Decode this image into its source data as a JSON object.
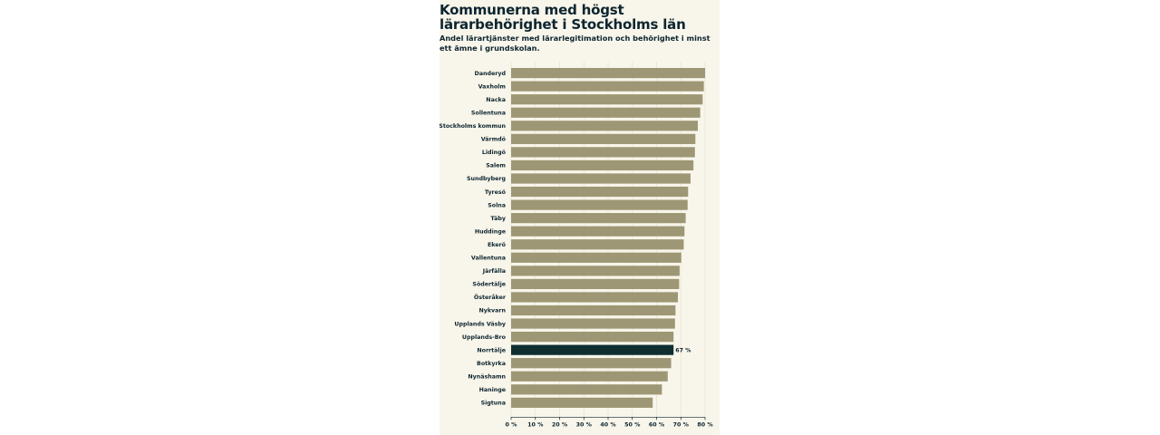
{
  "title": "Kommunerna med högst lärarbehörighet i Stockholms län",
  "subtitle": "Andel lärartjänster med lärarlegitimation och behörighet i minst ett ämne i grundskolan.",
  "chart_data": {
    "type": "bar",
    "orientation": "horizontal",
    "title": "Kommunerna med högst lärarbehörighet i Stockholms län",
    "subtitle": "Andel lärartjänster med lärarlegitimation och behörighet i minst ett ämne i grundskolan.",
    "xlabel": "",
    "ylabel": "",
    "xlim": [
      0,
      80
    ],
    "grid": true,
    "categories": [
      "Danderyd",
      "Vaxholm",
      "Nacka",
      "Sollentuna",
      "Stockholms kommun",
      "Värmdö",
      "Lidingö",
      "Salem",
      "Sundbyberg",
      "Tyresö",
      "Solna",
      "Täby",
      "Huddinge",
      "Ekerö",
      "Vallentuna",
      "Järfälla",
      "Södertälje",
      "Österåker",
      "Nykvarn",
      "Upplands Väsby",
      "Upplands-Bro",
      "Norrtälje",
      "Botkyrka",
      "Nynäshamn",
      "Haninge",
      "Sigtuna"
    ],
    "values": [
      80,
      79.5,
      79,
      78,
      77,
      76,
      75.8,
      75.2,
      74,
      73,
      72.8,
      72,
      71.5,
      71.2,
      70.2,
      69.5,
      69.3,
      68.8,
      67.8,
      67.6,
      67,
      67,
      66,
      64.6,
      62.2,
      58.4
    ],
    "tick_labels": [
      "0 %",
      "10 %",
      "20 %",
      "30 %",
      "40 %",
      "50 %",
      "60 %",
      "70 %",
      "80 %"
    ],
    "highlight": {
      "category": "Norrtälje",
      "label": "67 %"
    },
    "colors": {
      "bar": "#9d9775",
      "highlight": "#0f2e30",
      "background": "#f8f5ea",
      "text": "#0d2530"
    }
  }
}
